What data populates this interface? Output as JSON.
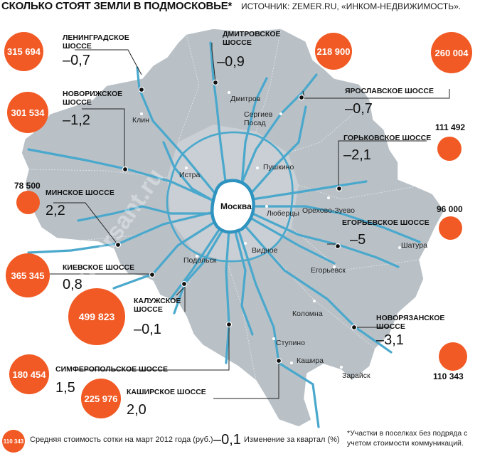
{
  "header": {
    "title": "СКОЛЬКО СТОЯТ ЗЕМЛИ В ПОДМОСКОВЬЕ*",
    "source": "ИСТОЧНИК: ZEMER.RU, «ИНКОМ-НЕДВИЖИМОСТЬ»."
  },
  "center": "Москва",
  "highways": [
    {
      "name": "ЛЕНИНГРАДСКОЕ ШОССЕ",
      "price": "315 694",
      "change": "–0,7"
    },
    {
      "name": "ДМИТРОВСКОЕ ШОССЕ",
      "price": "218 900",
      "change": "–0,9"
    },
    {
      "name": "ЯРОСЛАВСКОЕ ШОССЕ",
      "price": "260 004",
      "change": "–0,7"
    },
    {
      "name": "НОВОРИЖСКОЕ ШОССЕ",
      "price": "301 534",
      "change": "–1,2"
    },
    {
      "name": "ГОРЬКОВСКОЕ ШОССЕ",
      "price": "111 492",
      "change": "–2,1"
    },
    {
      "name": "МИНСКОЕ ШОССЕ",
      "price": "78 500",
      "change": "2,2"
    },
    {
      "name": "ЕГОРЬЕВСКОЕ ШОССЕ",
      "price": "96 000",
      "change": "–5"
    },
    {
      "name": "КИЕВСКОЕ ШОССЕ",
      "price": "365 345",
      "change": "0,8"
    },
    {
      "name": "КАЛУЖСКОЕ ШОССЕ",
      "price": "499 823",
      "change": "–0,1"
    },
    {
      "name": "НОВОРЯЗАНСКОЕ ШОССЕ",
      "price": "110 343",
      "change": "–3,1"
    },
    {
      "name": "СИМФЕРОПОЛЬСКОЕ ШОССЕ",
      "price": "180 454",
      "change": "1,5"
    },
    {
      "name": "КАШИРСКОЕ ШОССЕ",
      "price": "225 976",
      "change": "2,0"
    }
  ],
  "cities": [
    "Клин",
    "Дмитров",
    "Сергиев Посад",
    "Истра",
    "Пушкино",
    "Орехово-Зуево",
    "Люберцы",
    "Шатура",
    "Подольск",
    "Видное",
    "Егорьевск",
    "Коломна",
    "Ступино",
    "Кашира",
    "Зарайск"
  ],
  "legend": {
    "sample_value": "110 343",
    "price_text": "Средняя стоимость сотки на март 2012 года (руб.)",
    "sample_change": "–0,1",
    "change_text": "Изменение за квартал (%)"
  },
  "footnote": "*Участки в поселках без подряда с учетом стоимости коммуникаций.",
  "watermark": "www.kommersant.ru",
  "colors": {
    "accent": "#f15a24",
    "region": "#b9c1c7",
    "roads": "#4aa8cc",
    "moscow_ring": "#2f93c0"
  }
}
